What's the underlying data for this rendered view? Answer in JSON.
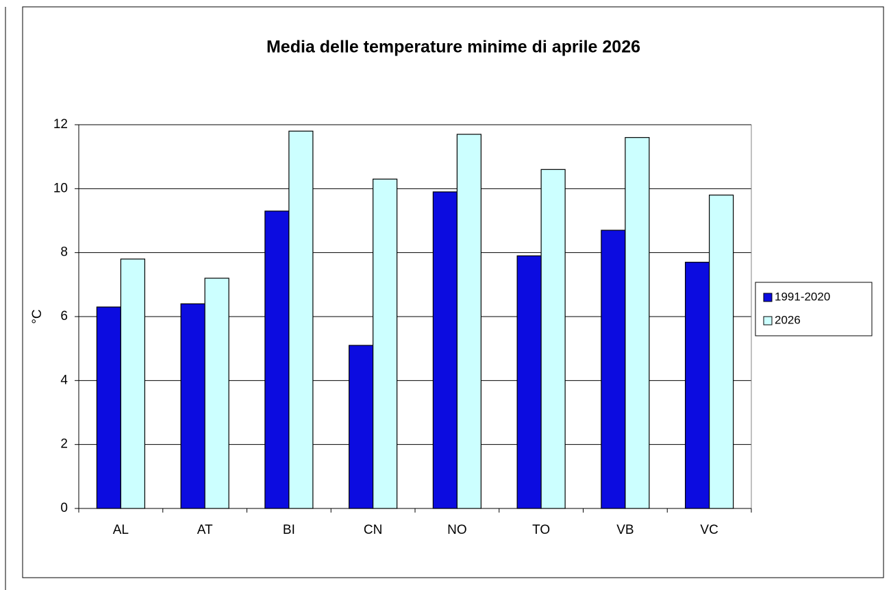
{
  "chart_data": {
    "type": "bar",
    "title": "Media delle temperature minime di aprile 2026",
    "y_label": "°C",
    "categories": [
      "AL",
      "AT",
      "BI",
      "CN",
      "NO",
      "TO",
      "VB",
      "VC"
    ],
    "series": [
      {
        "name": "1991-2020",
        "color": "#0c0ce0",
        "values": [
          6.3,
          6.4,
          9.3,
          5.1,
          9.9,
          7.9,
          8.7,
          7.7
        ]
      },
      {
        "name": "2026",
        "color": "#ccffff",
        "values": [
          7.8,
          7.2,
          11.8,
          10.3,
          11.7,
          10.6,
          11.6,
          9.8
        ]
      }
    ],
    "ylim": [
      0,
      12
    ],
    "yticks": [
      0,
      2,
      4,
      6,
      8,
      10,
      12
    ],
    "grid": true,
    "legend": "right"
  }
}
